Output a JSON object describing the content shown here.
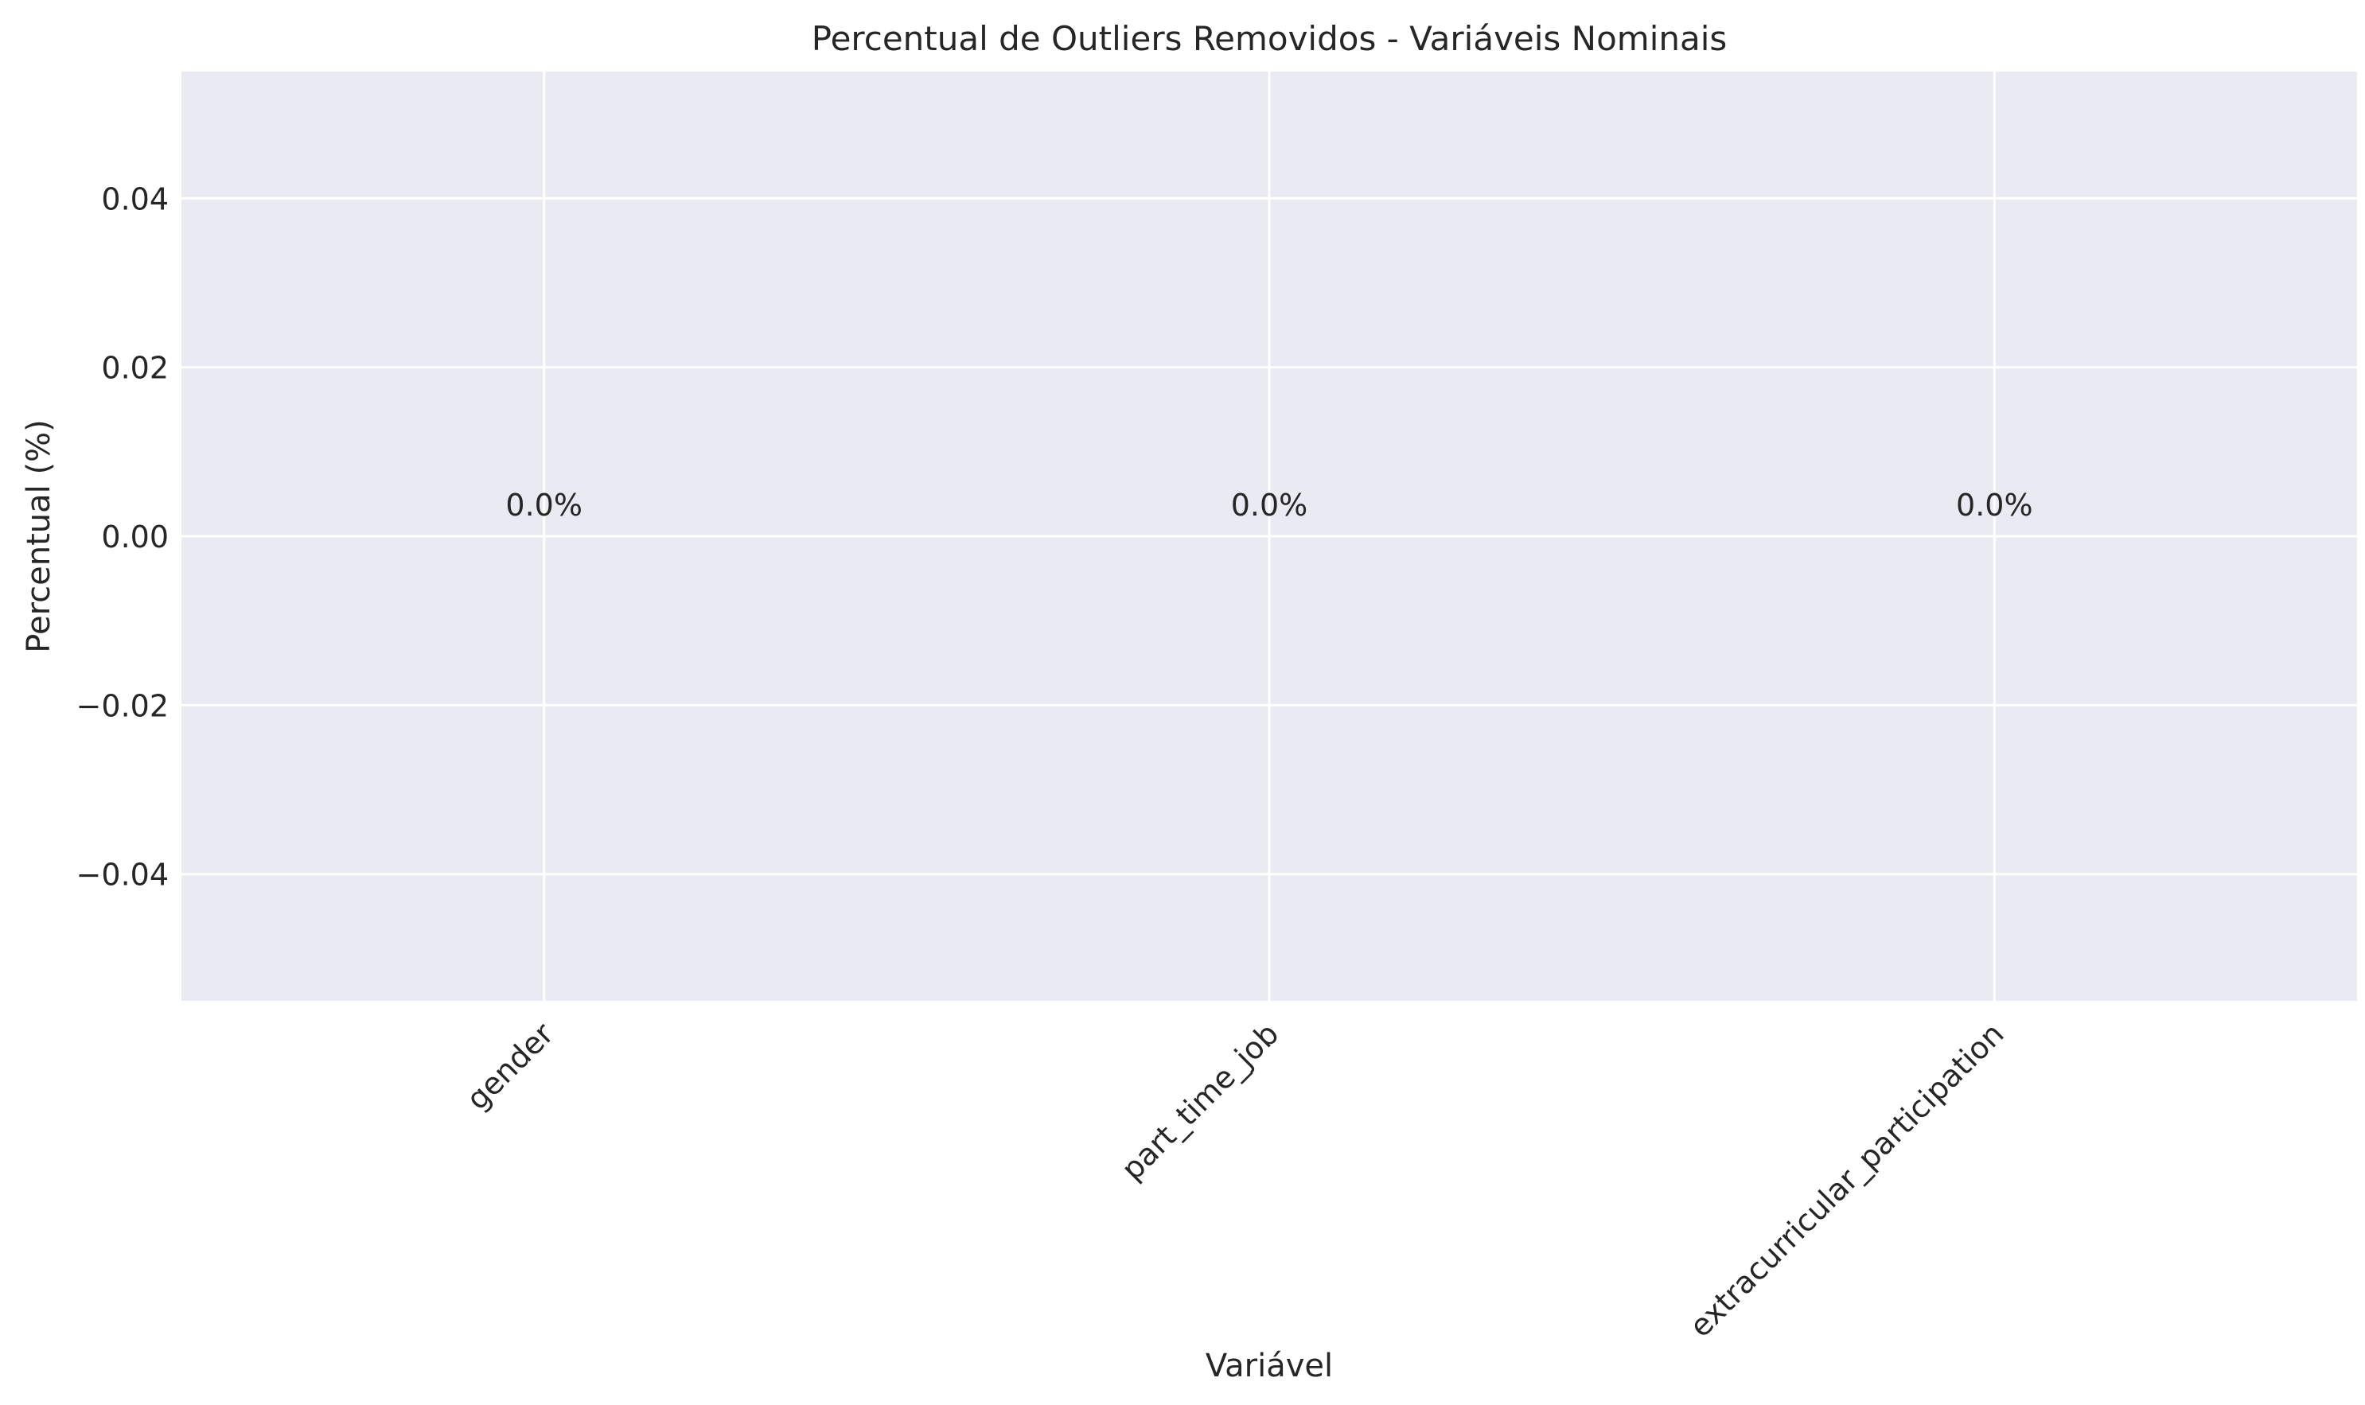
{
  "chart_data": {
    "type": "bar",
    "title": "Percentual de Outliers Removidos - Variáveis Nominais",
    "xlabel": "Variável",
    "ylabel": "Percentual (%)",
    "categories": [
      "gender",
      "part_time_job",
      "extracurricular_participation"
    ],
    "values": [
      0.0,
      0.0,
      0.0
    ],
    "data_labels": [
      "0.0%",
      "0.0%",
      "0.0%"
    ],
    "ylim": [
      -0.055,
      0.055
    ],
    "yticks": [
      -0.04,
      -0.02,
      0.0,
      0.02,
      0.04
    ],
    "ytick_labels": [
      "−0.04",
      "−0.02",
      "0.00",
      "0.02",
      "0.04"
    ],
    "grid": true,
    "colors": {
      "plot_background": "#eaeaf2",
      "grid": "#ffffff",
      "text": "#262626"
    }
  }
}
